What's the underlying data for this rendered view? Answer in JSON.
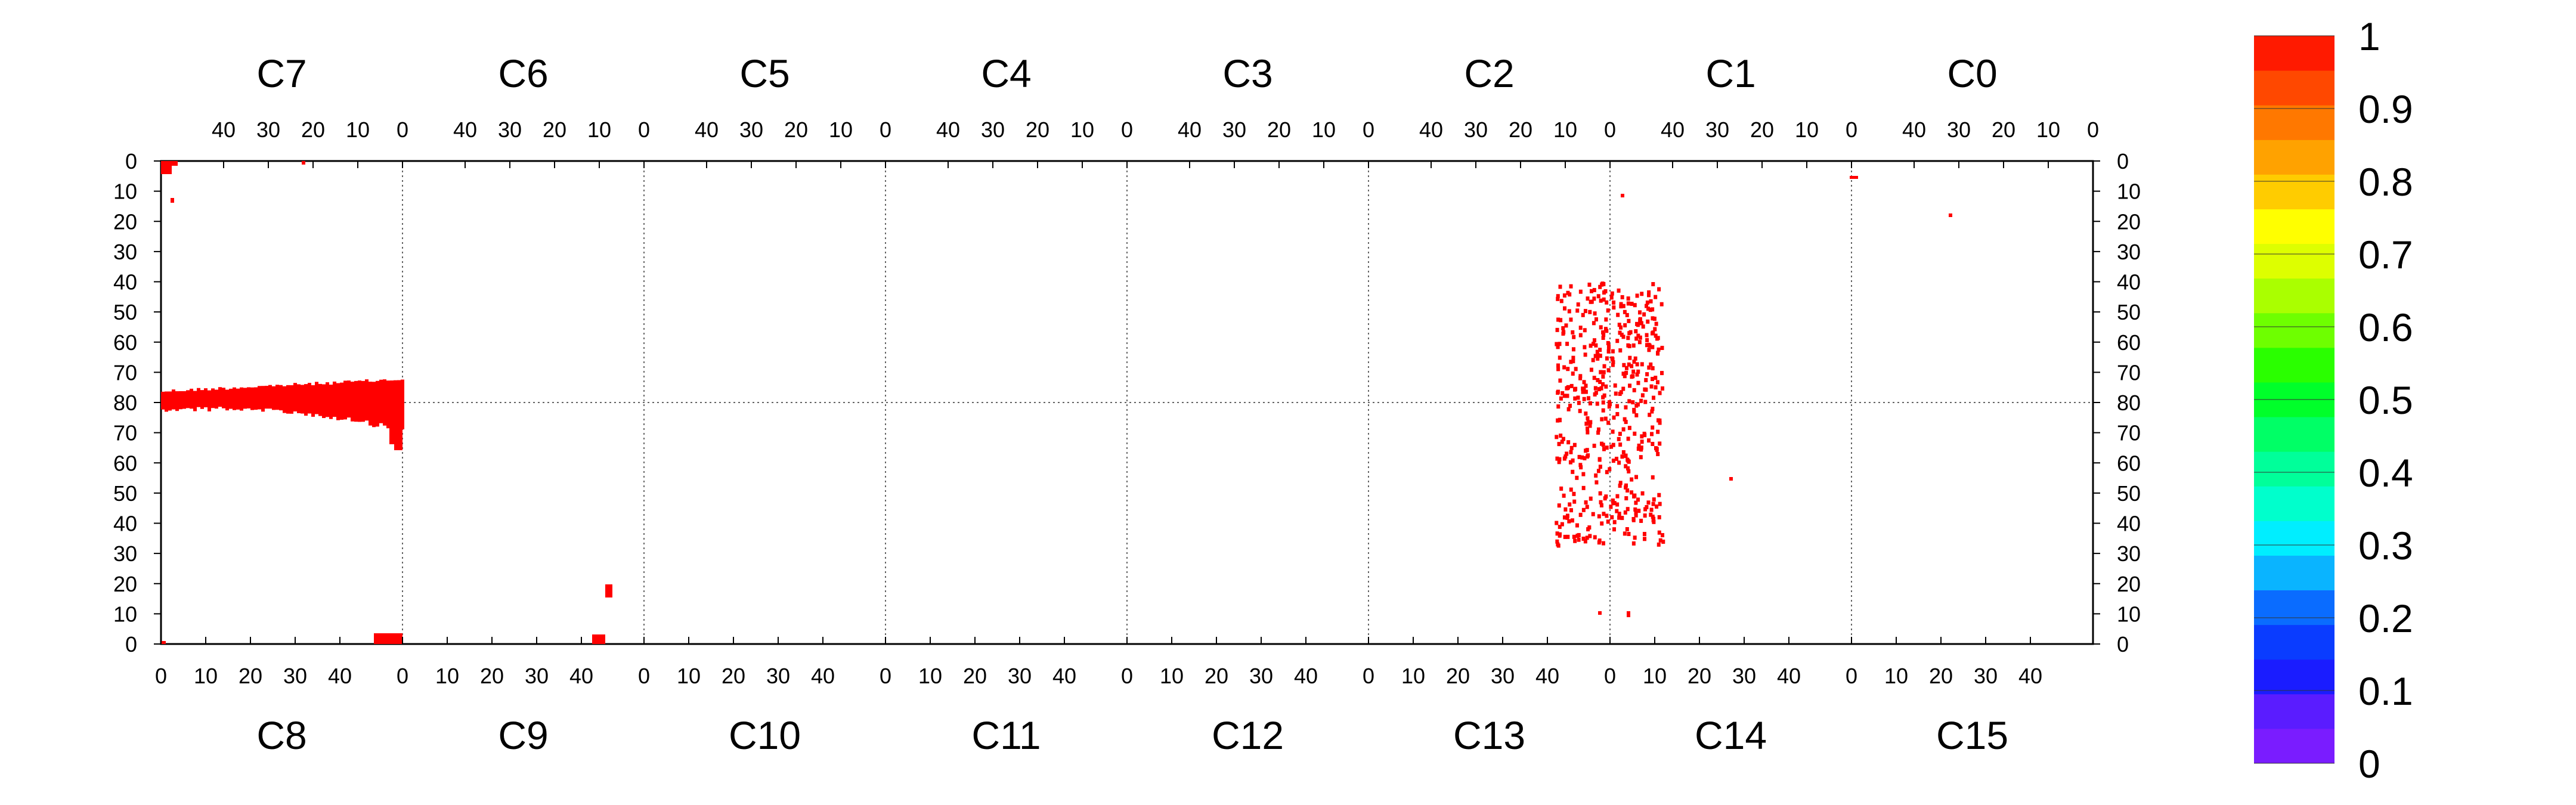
{
  "chart_data": {
    "type": "heatmap",
    "title": "",
    "top_chamber_labels": [
      "C7",
      "C6",
      "C5",
      "C4",
      "C3",
      "C2",
      "C1",
      "C0"
    ],
    "bottom_chamber_labels": [
      "C8",
      "C9",
      "C10",
      "C11",
      "C12",
      "C13",
      "C14",
      "C15"
    ],
    "top_x_ticks": [
      "40",
      "30",
      "20",
      "10",
      "0"
    ],
    "bottom_x_ticks": [
      "0",
      "10",
      "20",
      "30",
      "40"
    ],
    "top_x_tick_values": [
      40,
      30,
      20,
      10,
      0
    ],
    "bottom_x_tick_values": [
      0,
      10,
      20,
      30,
      40
    ],
    "x_range_per_chamber": [
      0,
      54
    ],
    "y_ticks_upper": [
      "0",
      "10",
      "20",
      "30",
      "40",
      "50",
      "60",
      "70",
      "80"
    ],
    "y_ticks_lower": [
      "70",
      "60",
      "50",
      "40",
      "30",
      "20",
      "10",
      "0"
    ],
    "y_range_per_half": [
      0,
      80
    ],
    "colorbar": {
      "ticks": [
        "1",
        "0.9",
        "0.8",
        "0.7",
        "0.6",
        "0.5",
        "0.4",
        "0.3",
        "0.2",
        "0.1",
        "0"
      ],
      "range": [
        0,
        1
      ],
      "colors": [
        "#7a1cff",
        "#5a1cff",
        "#1a1cff",
        "#0a3cff",
        "#0a6cff",
        "#0ab4ff",
        "#00eeff",
        "#00ffcc",
        "#00ff9a",
        "#00ff66",
        "#00ff2a",
        "#2aff00",
        "#6eff00",
        "#aaff00",
        "#ddff00",
        "#ffff00",
        "#ffcc00",
        "#ffa200",
        "#ff7800",
        "#ff4800",
        "#ff1a00"
      ]
    },
    "clusters": [
      {
        "region": "C7/C8 near x=0",
        "half": "upper",
        "x_range": [
          0,
          3
        ],
        "y_range": [
          0,
          3
        ],
        "value": 1
      },
      {
        "region": "C8 band",
        "half": "lower",
        "x_range": [
          0,
          54
        ],
        "y_range": [
          75,
          80
        ],
        "value": 1
      },
      {
        "region": "C7 band",
        "half": "upper",
        "x_range": [
          0,
          54
        ],
        "y_range": [
          77,
          80
        ],
        "value": 1
      },
      {
        "region": "C8 end",
        "half": "lower",
        "x_range": [
          48,
          54
        ],
        "y_range": [
          65,
          80
        ],
        "value": 1
      },
      {
        "region": "C8 bottom",
        "half": "lower",
        "x_range": [
          47,
          54
        ],
        "y_range": [
          0,
          3
        ],
        "value": 1
      },
      {
        "region": "C9 bottom",
        "half": "lower",
        "x_range": [
          42,
          45
        ],
        "y_range": [
          0,
          3
        ],
        "value": 1
      },
      {
        "region": "C9 spot",
        "half": "lower",
        "x_range": [
          44,
          46
        ],
        "y_range": [
          16,
          19
        ],
        "value": 1
      },
      {
        "region": "C2/C1 scatter upper",
        "half": "upper",
        "x_range": [
          44,
          12
        ],
        "y_range": [
          42,
          80
        ],
        "value": 1
      },
      {
        "region": "C13/C14 scatter lower",
        "half": "lower",
        "x_range": [
          43,
          11
        ],
        "y_range": [
          32,
          80
        ],
        "value": 1
      },
      {
        "region": "C0 spot",
        "half": "upper",
        "x_range": [
          0,
          1
        ],
        "y_range": [
          5,
          6
        ],
        "value": 1
      },
      {
        "region": "C0 spot 2",
        "half": "upper",
        "x_range": [
          21,
          22
        ],
        "y_range": [
          18,
          19
        ],
        "value": 1
      }
    ]
  }
}
